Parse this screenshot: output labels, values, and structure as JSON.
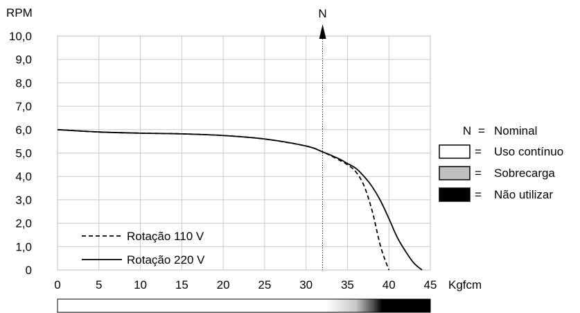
{
  "chart_data": {
    "type": "line",
    "ylabel": "RPM",
    "xlabel": "Kgfcm",
    "xlim": [
      0,
      45
    ],
    "ylim": [
      0,
      10
    ],
    "x_ticks": [
      "0",
      "5",
      "10",
      "15",
      "20",
      "25",
      "30",
      "35",
      "40",
      "45"
    ],
    "y_ticks": [
      "0",
      "1,0",
      "2,0",
      "3,0",
      "4,0",
      "5,0",
      "6,0",
      "7,0",
      "8,0",
      "9,0",
      "10,0"
    ],
    "grid": true,
    "nominal_marker": {
      "label": "N",
      "x": 32
    },
    "series": [
      {
        "name": "Rotação 110 V",
        "style": "dashed",
        "x": [
          0,
          5,
          10,
          15,
          20,
          25,
          30,
          32,
          34,
          35,
          36,
          37,
          38,
          39,
          40
        ],
        "y": [
          6.0,
          5.9,
          5.85,
          5.82,
          5.75,
          5.6,
          5.3,
          5.05,
          4.7,
          4.5,
          4.2,
          3.6,
          2.5,
          1.0,
          0
        ]
      },
      {
        "name": "Rotação 220 V",
        "style": "solid",
        "x": [
          0,
          5,
          10,
          15,
          20,
          25,
          30,
          32,
          34,
          35,
          36,
          37,
          38,
          39,
          40,
          41,
          42,
          43,
          44
        ],
        "y": [
          6.0,
          5.9,
          5.85,
          5.82,
          5.75,
          5.6,
          5.3,
          5.05,
          4.75,
          4.55,
          4.35,
          4.0,
          3.55,
          2.95,
          2.2,
          1.4,
          0.8,
          0.3,
          0
        ]
      }
    ],
    "legend_items": [
      {
        "symbol": "N",
        "eq": "=",
        "text": "Nominal"
      },
      {
        "fill": "#ffffff",
        "eq": "=",
        "text": "Uso contínuo"
      },
      {
        "fill": "#c0c0c0",
        "eq": "=",
        "text": "Sobrecarga"
      },
      {
        "fill": "#000000",
        "eq": "=",
        "text": "Não utilizar"
      }
    ],
    "gradient_bar": {
      "white_until": 32,
      "gray_from": 32,
      "black_from": 38.5,
      "end": 45
    }
  }
}
